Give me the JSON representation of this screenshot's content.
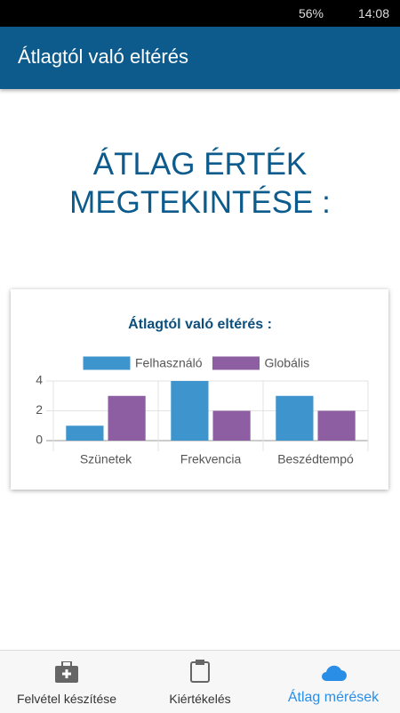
{
  "status_bar": {
    "battery": "56%",
    "time": "14:08"
  },
  "app_bar": {
    "title": "Átlagtól való eltérés"
  },
  "heading": {
    "lines": [
      "ÁTLAG ÉRTÉK",
      "MEGTEKINTÉSE :"
    ]
  },
  "chart_data": {
    "type": "bar",
    "title": "Átlagtól való eltérés :",
    "categories": [
      "Szünetek",
      "Frekvencia",
      "Beszédtempó"
    ],
    "series": [
      {
        "name": "Felhasználó",
        "color": "#3e95cd",
        "values": [
          1,
          4,
          3
        ]
      },
      {
        "name": "Globális",
        "color": "#8e5ea2",
        "values": [
          3,
          2,
          2
        ]
      }
    ],
    "ylim": [
      0,
      4
    ],
    "yticks": [
      0,
      2,
      4
    ],
    "grid": true,
    "legend": "top"
  },
  "nav": {
    "items": [
      "Felvétel készítése",
      "Kiértékelés",
      "Átlag mérések"
    ],
    "active": 2
  }
}
